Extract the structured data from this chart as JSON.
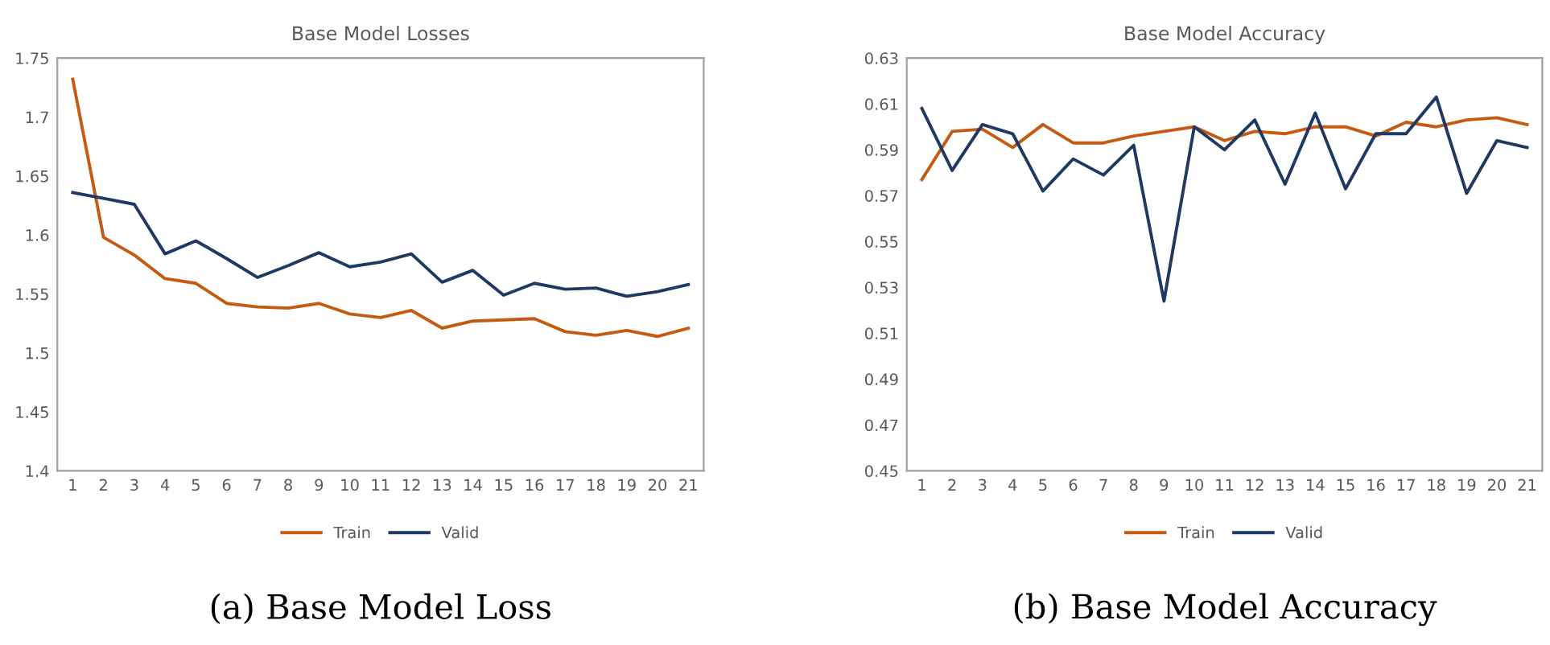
{
  "chart_data": [
    {
      "type": "line",
      "title": "Base Model Losses",
      "categories": [
        "1",
        "2",
        "3",
        "4",
        "5",
        "6",
        "7",
        "8",
        "9",
        "10",
        "11",
        "12",
        "13",
        "14",
        "15",
        "16",
        "17",
        "18",
        "19",
        "20",
        "21"
      ],
      "series": [
        {
          "name": "Train",
          "color": "#c55a11",
          "values": [
            1.732,
            1.598,
            1.583,
            1.563,
            1.559,
            1.542,
            1.539,
            1.538,
            1.542,
            1.533,
            1.53,
            1.536,
            1.521,
            1.527,
            1.528,
            1.529,
            1.518,
            1.515,
            1.519,
            1.514,
            1.521
          ]
        },
        {
          "name": "Valid",
          "color": "#1f3864",
          "values": [
            1.636,
            1.631,
            1.626,
            1.584,
            1.595,
            1.58,
            1.564,
            1.574,
            1.585,
            1.573,
            1.577,
            1.584,
            1.56,
            1.57,
            1.549,
            1.559,
            1.554,
            1.555,
            1.548,
            1.552,
            1.558
          ]
        }
      ],
      "ylim": [
        1.4,
        1.75
      ],
      "yticks": [
        1.4,
        1.45,
        1.5,
        1.55,
        1.6,
        1.65,
        1.7,
        1.75
      ],
      "grid": false,
      "legend": "bottom",
      "marker": "none",
      "line_style": "solid",
      "annotations": [
        "(a) Base Model Loss"
      ]
    },
    {
      "type": "line",
      "title": "Base Model Accuracy",
      "categories": [
        "1",
        "2",
        "3",
        "4",
        "5",
        "6",
        "7",
        "8",
        "9",
        "10",
        "11",
        "12",
        "13",
        "14",
        "15",
        "16",
        "17",
        "18",
        "19",
        "20",
        "21"
      ],
      "series": [
        {
          "name": "Train",
          "color": "#c55a11",
          "values": [
            0.577,
            0.598,
            0.599,
            0.591,
            0.601,
            0.593,
            0.593,
            0.596,
            0.598,
            0.6,
            0.594,
            0.598,
            0.597,
            0.6,
            0.6,
            0.596,
            0.602,
            0.6,
            0.603,
            0.604,
            0.601
          ]
        },
        {
          "name": "Valid",
          "color": "#1f3864",
          "values": [
            0.608,
            0.581,
            0.601,
            0.597,
            0.572,
            0.586,
            0.579,
            0.592,
            0.524,
            0.6,
            0.59,
            0.603,
            0.575,
            0.606,
            0.573,
            0.597,
            0.597,
            0.613,
            0.571,
            0.594,
            0.591
          ]
        }
      ],
      "ylim": [
        0.45,
        0.63
      ],
      "yticks": [
        0.45,
        0.47,
        0.49,
        0.51,
        0.53,
        0.55,
        0.57,
        0.59,
        0.61,
        0.63
      ],
      "grid": false,
      "legend": "bottom",
      "marker": "none",
      "line_style": "solid",
      "annotations": [
        "(b) Base Model Accuracy"
      ]
    }
  ]
}
